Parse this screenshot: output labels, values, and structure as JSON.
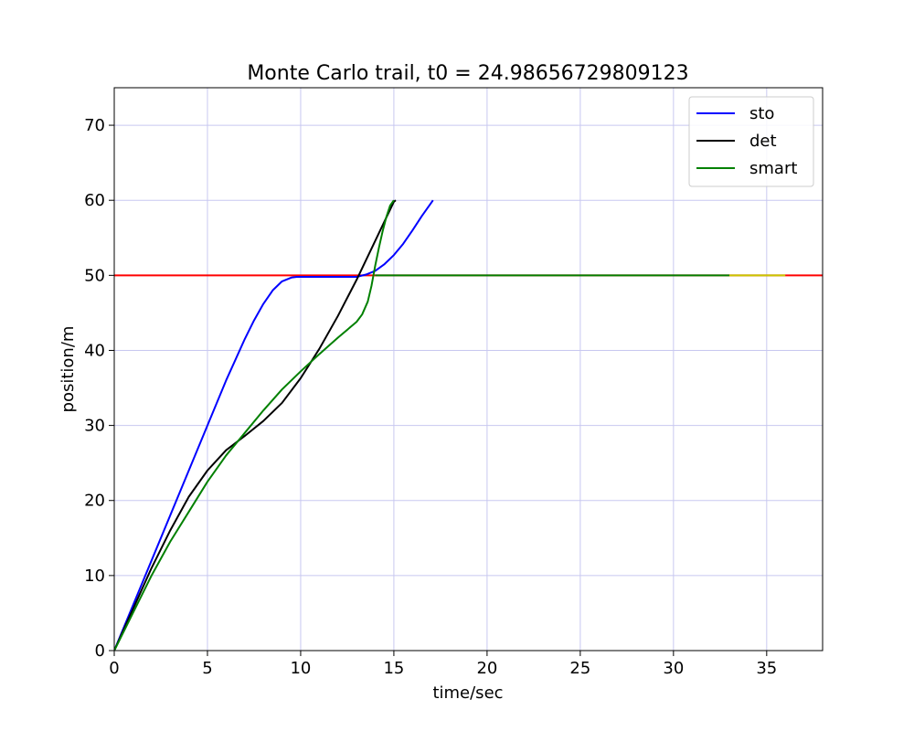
{
  "chart_data": {
    "type": "line",
    "title": "Monte Carlo trail, t0 = 24.98656729809123",
    "xlabel": "time/sec",
    "ylabel": "position/m",
    "xlim": [
      0,
      38
    ],
    "ylim": [
      0,
      75
    ],
    "xticks": [
      0,
      5,
      10,
      15,
      20,
      25,
      30,
      35
    ],
    "yticks": [
      0,
      10,
      20,
      30,
      40,
      50,
      60,
      70
    ],
    "grid": true,
    "grid_color": "#c8c8f0",
    "legend_position": "top-right",
    "series": [
      {
        "name": "sto",
        "color": "#0000ff",
        "x": [
          0,
          2,
          4,
          5,
          6,
          7,
          7.5,
          8,
          8.5,
          9,
          9.5,
          9.8,
          10,
          11,
          12,
          13,
          13.5,
          14,
          14.5,
          15,
          15.5,
          16,
          16.5,
          17.1
        ],
        "y": [
          0,
          12,
          24,
          30,
          36,
          41.5,
          44,
          46.2,
          48,
          49.2,
          49.7,
          49.8,
          49.8,
          49.8,
          49.8,
          49.8,
          50.1,
          50.6,
          51.5,
          52.7,
          54.2,
          56,
          57.9,
          60
        ]
      },
      {
        "name": "det",
        "color": "#000000",
        "x": [
          0,
          1,
          2,
          3,
          4,
          5,
          6,
          7,
          8,
          9,
          10,
          11,
          12,
          13,
          13.5,
          14,
          14.5,
          15,
          15.1
        ],
        "y": [
          0,
          5.5,
          11,
          16,
          20.5,
          24,
          26.7,
          28.6,
          30.6,
          33,
          36.3,
          40.2,
          44.6,
          49.4,
          52,
          54.6,
          57.2,
          59.8,
          60
        ]
      },
      {
        "name": "smart",
        "color": "#008000",
        "x": [
          0,
          1,
          2,
          3,
          4,
          5,
          6,
          7,
          8,
          9,
          10,
          11,
          12,
          13,
          13.3,
          13.6,
          13.8,
          14,
          14.2,
          14.4,
          14.6,
          14.8,
          15
        ],
        "y": [
          0,
          5,
          10,
          14.5,
          18.5,
          22.5,
          26,
          29,
          32,
          34.8,
          37.2,
          39.5,
          41.7,
          43.8,
          44.8,
          46.5,
          48.6,
          51.3,
          53.7,
          55.9,
          57.8,
          59.3,
          60
        ]
      }
    ],
    "reference_lines": [
      {
        "color": "#ff0000",
        "y": 50,
        "x": [
          0,
          38
        ]
      },
      {
        "color": "#c8c800",
        "y": 50,
        "x": [
          33,
          36
        ]
      },
      {
        "color": "#008000",
        "y": 50,
        "x": [
          14,
          33
        ]
      }
    ]
  }
}
